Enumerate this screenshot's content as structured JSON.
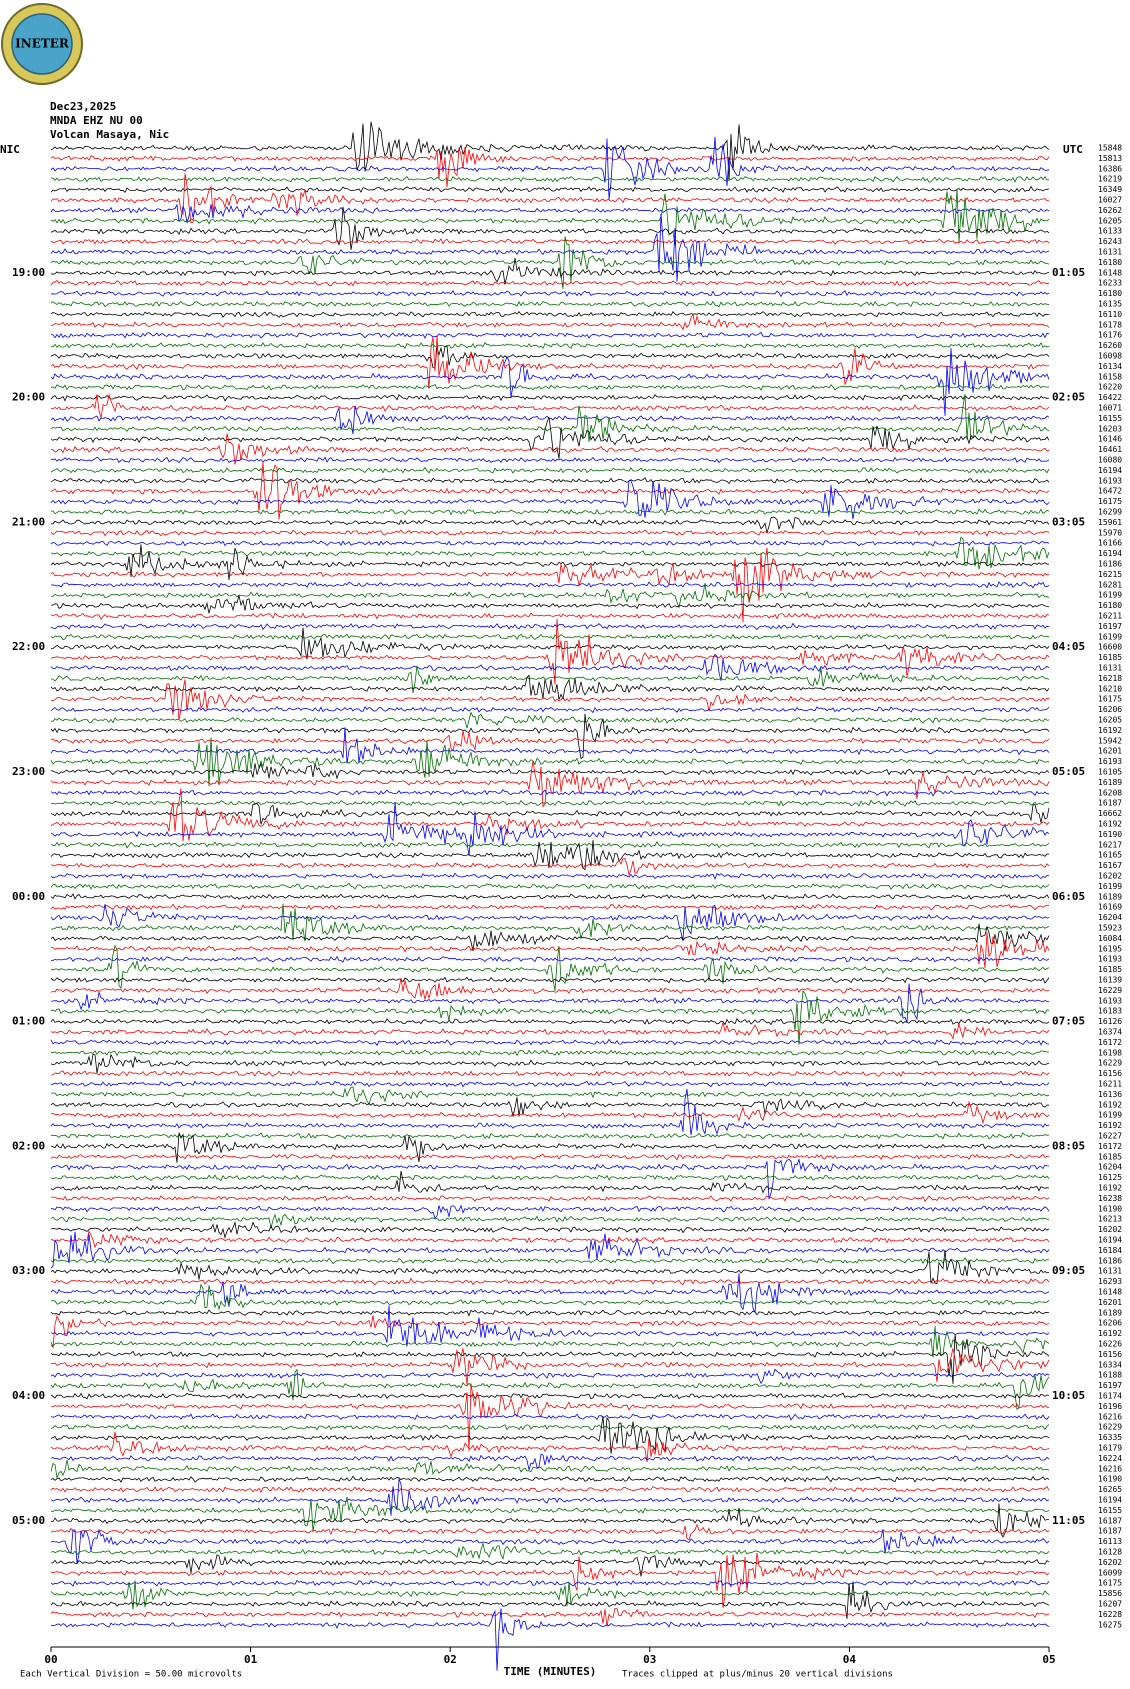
{
  "logo": "INETER",
  "header": {
    "date": "Dec23,2025",
    "station": "MNDA EHZ NU 00",
    "location": "Volcan Masaya, Nic"
  },
  "left_zone": "NIC",
  "right_zone": "UTC",
  "left_hours": [
    "19:00",
    "20:00",
    "21:00",
    "22:00",
    "23:00",
    "00:00",
    "01:00",
    "02:00",
    "03:00",
    "04:00",
    "05:00"
  ],
  "right_hours": [
    "01:05",
    "02:05",
    "03:05",
    "04:05",
    "05:05",
    "06:05",
    "07:05",
    "08:05",
    "09:05",
    "10:05",
    "11:05"
  ],
  "trace_values": [
    15848,
    15813,
    16386,
    16219,
    16349,
    16027,
    16262,
    16205,
    16133,
    16243,
    16131,
    16180,
    16148,
    16233,
    16180,
    16135,
    16110,
    16178,
    16176,
    16260,
    16098,
    16134,
    16158,
    16220,
    16422,
    16071,
    16155,
    16203,
    16146,
    16461,
    16080,
    16194,
    16193,
    16472,
    16175,
    16299,
    15961,
    15970,
    16166,
    16194,
    16186,
    16215,
    16281,
    16199,
    16180,
    16211,
    16197,
    16199,
    16600,
    16185,
    16131,
    16218,
    16210,
    16175,
    16206,
    16205,
    16192,
    15942,
    16201,
    16193,
    16105,
    16189,
    16208,
    16187,
    16662,
    16192,
    16190,
    16217,
    16165,
    16167,
    16202,
    16199,
    16189,
    16169,
    16204,
    15923,
    16084,
    16195,
    16193,
    16185,
    16139,
    16229,
    16193,
    16183,
    16126,
    16374,
    16172,
    16198,
    16229,
    16156,
    16211,
    16136,
    16192,
    16199,
    16192,
    16227,
    16172,
    16185,
    16204,
    16125,
    16192,
    16238,
    16190,
    16213,
    16202,
    16194,
    16184,
    16186,
    16131,
    16293,
    16148,
    16201,
    16189,
    16206,
    16192,
    16226,
    16156,
    16334,
    16188,
    16197,
    16174,
    16196,
    16216,
    16229,
    16335,
    16179,
    16224,
    16216,
    16190,
    16265,
    16194,
    16155,
    16187,
    16187,
    16113,
    16128,
    16202,
    16099,
    16175,
    15856,
    16207,
    16228,
    16275
  ],
  "x_axis": {
    "label": "TIME (MINUTES)",
    "ticks": [
      "00",
      "01",
      "02",
      "03",
      "04",
      "05"
    ]
  },
  "footer": {
    "scale": "Each Vertical Division =   50.00 microvolts",
    "clip": "Traces clipped at plus/minus 20 vertical divisions"
  }
}
